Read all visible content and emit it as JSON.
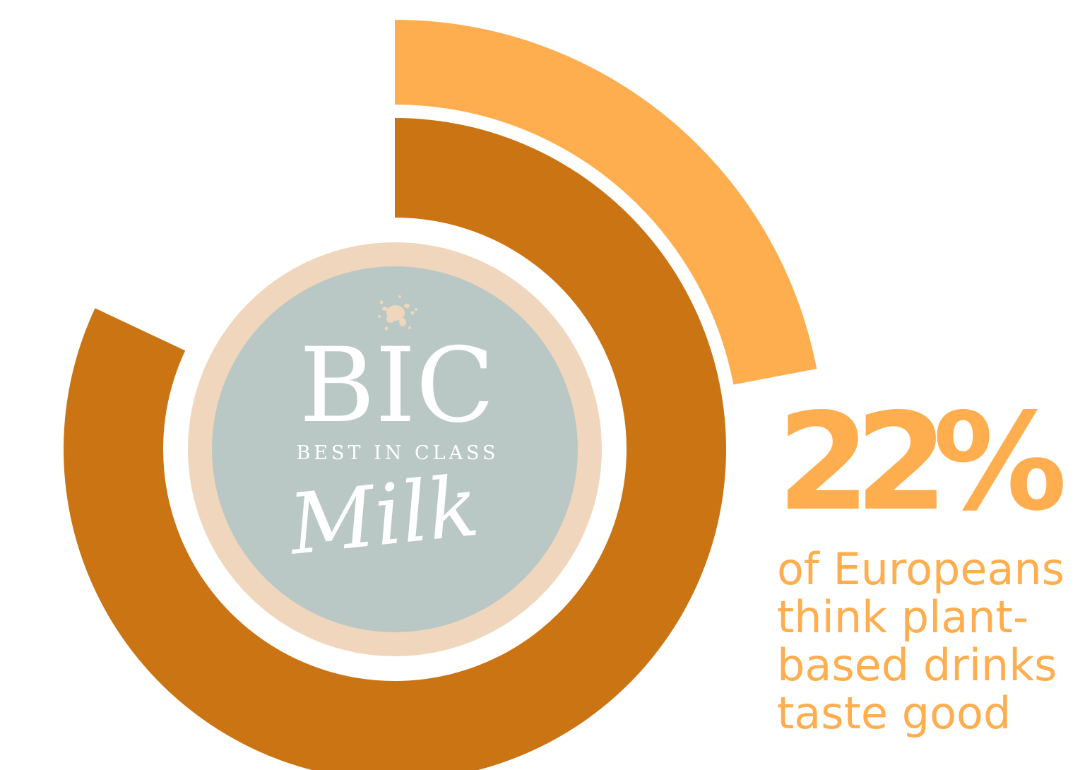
{
  "stat": {
    "value": "22%",
    "caption": "of Europeans\nthink plant-\nbased drinks\ntaste good"
  },
  "logo": {
    "main": "BIC",
    "tagline": "BEST IN CLASS",
    "script": "Milk"
  },
  "colors": {
    "outer_arc": "#ffae4f",
    "inner_arc": "#cb7414",
    "logo_ring": "#f0d6bc",
    "logo_disc": "#b9c8c5",
    "logo_text": "#ffffff",
    "background": "#ffffff"
  },
  "chart_data": {
    "type": "radial-bar",
    "series": [
      {
        "name": "",
        "percent": 22,
        "color": "#ffae4f"
      },
      {
        "name": "",
        "percent": 82,
        "color": "#cb7414"
      }
    ],
    "labels": [
      "22%"
    ]
  }
}
